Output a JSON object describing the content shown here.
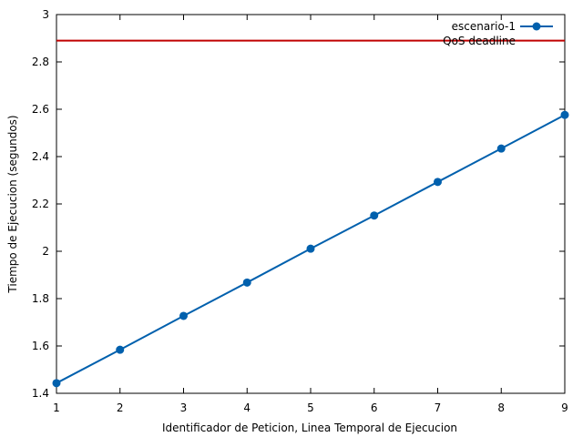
{
  "chart_data": {
    "type": "line",
    "title": "",
    "xlabel": "Identificador de Peticion, Linea Temporal de Ejecucion",
    "ylabel": "Tiempo de Ejecucion (segundos)",
    "xlim": [
      1,
      9
    ],
    "ylim": [
      1.4,
      3
    ],
    "x_ticks": [
      1,
      2,
      3,
      4,
      5,
      6,
      7,
      8,
      9
    ],
    "y_ticks": [
      1.4,
      1.6,
      1.8,
      2,
      2.2,
      2.4,
      2.6,
      2.8,
      3
    ],
    "x_tick_labels": [
      "1",
      "2",
      "3",
      "4",
      "5",
      "6",
      "7",
      "8",
      "9"
    ],
    "y_tick_labels": [
      "1.4",
      "1.6",
      "1.8",
      "2",
      "2.2",
      "2.4",
      "2.6",
      "2.8",
      "3"
    ],
    "grid": false,
    "legend_position": "top-right",
    "series": [
      {
        "name": "escenario-1",
        "color": "#0060ad",
        "marker": "circle",
        "x": [
          1,
          2,
          3,
          4,
          5,
          6,
          7,
          8,
          9
        ],
        "y": [
          1.443,
          1.584,
          1.727,
          1.868,
          2.011,
          2.151,
          2.293,
          2.434,
          2.576
        ]
      }
    ],
    "reference_lines": [
      {
        "name": "QoS deadline",
        "orientation": "horizontal",
        "y": 2.89,
        "color": "#c00000"
      }
    ]
  }
}
